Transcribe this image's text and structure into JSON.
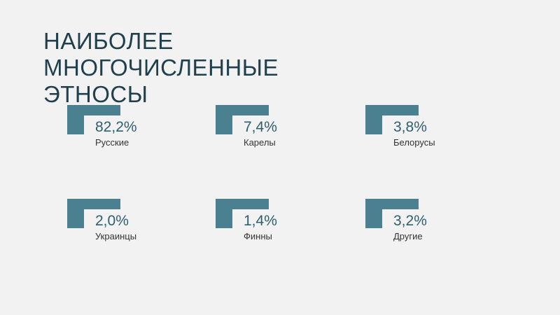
{
  "title": {
    "line1": "НАИБОЛЕЕ",
    "line2": "МНОГОЧИСЛЕННЫЕ",
    "line3": "ЭТНОСЫ"
  },
  "stats": [
    {
      "value": "82,2%",
      "label": "Русские"
    },
    {
      "value": "7,4%",
      "label": "Карелы"
    },
    {
      "value": "3,8%",
      "label": "Белорусы"
    },
    {
      "value": "2,0%",
      "label": "Украинцы"
    },
    {
      "value": "1,4%",
      "label": "Финны"
    },
    {
      "value": "3,2%",
      "label": "Другие"
    }
  ],
  "colors": {
    "accent": "#4a8090",
    "title": "#1f3f4c",
    "value": "#2e5f70",
    "background": "#f2f2f2"
  }
}
